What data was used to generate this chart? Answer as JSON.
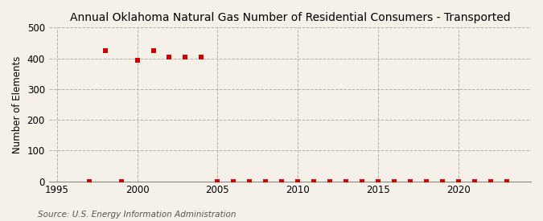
{
  "title": "Annual Oklahoma Natural Gas Number of Residential Consumers - Transported",
  "ylabel": "Number of Elements",
  "source": "Source: U.S. Energy Information Administration",
  "background_color": "#f5f0e8",
  "data": [
    {
      "year": 1997,
      "value": 0
    },
    {
      "year": 1998,
      "value": 425
    },
    {
      "year": 1999,
      "value": 0
    },
    {
      "year": 2000,
      "value": 395
    },
    {
      "year": 2001,
      "value": 425
    },
    {
      "year": 2002,
      "value": 403
    },
    {
      "year": 2003,
      "value": 405
    },
    {
      "year": 2004,
      "value": 405
    },
    {
      "year": 2005,
      "value": 0
    },
    {
      "year": 2006,
      "value": 0
    },
    {
      "year": 2007,
      "value": 0
    },
    {
      "year": 2008,
      "value": 0
    },
    {
      "year": 2009,
      "value": 0
    },
    {
      "year": 2010,
      "value": 0
    },
    {
      "year": 2011,
      "value": 0
    },
    {
      "year": 2012,
      "value": 0
    },
    {
      "year": 2013,
      "value": 0
    },
    {
      "year": 2014,
      "value": 0
    },
    {
      "year": 2015,
      "value": 0
    },
    {
      "year": 2016,
      "value": 0
    },
    {
      "year": 2017,
      "value": 0
    },
    {
      "year": 2018,
      "value": 0
    },
    {
      "year": 2019,
      "value": 0
    },
    {
      "year": 2020,
      "value": 0
    },
    {
      "year": 2021,
      "value": 0
    },
    {
      "year": 2022,
      "value": 0
    },
    {
      "year": 2023,
      "value": 0
    }
  ],
  "marker_color": "#cc0000",
  "marker_size": 5,
  "xlim": [
    1994.5,
    2024.5
  ],
  "ylim": [
    0,
    500
  ],
  "yticks": [
    0,
    100,
    200,
    300,
    400,
    500
  ],
  "xticks": [
    1995,
    2000,
    2005,
    2010,
    2015,
    2020
  ],
  "grid_color": "#aaaaaa",
  "title_fontsize": 10,
  "axis_fontsize": 8.5,
  "tick_fontsize": 8.5,
  "source_fontsize": 7.5
}
